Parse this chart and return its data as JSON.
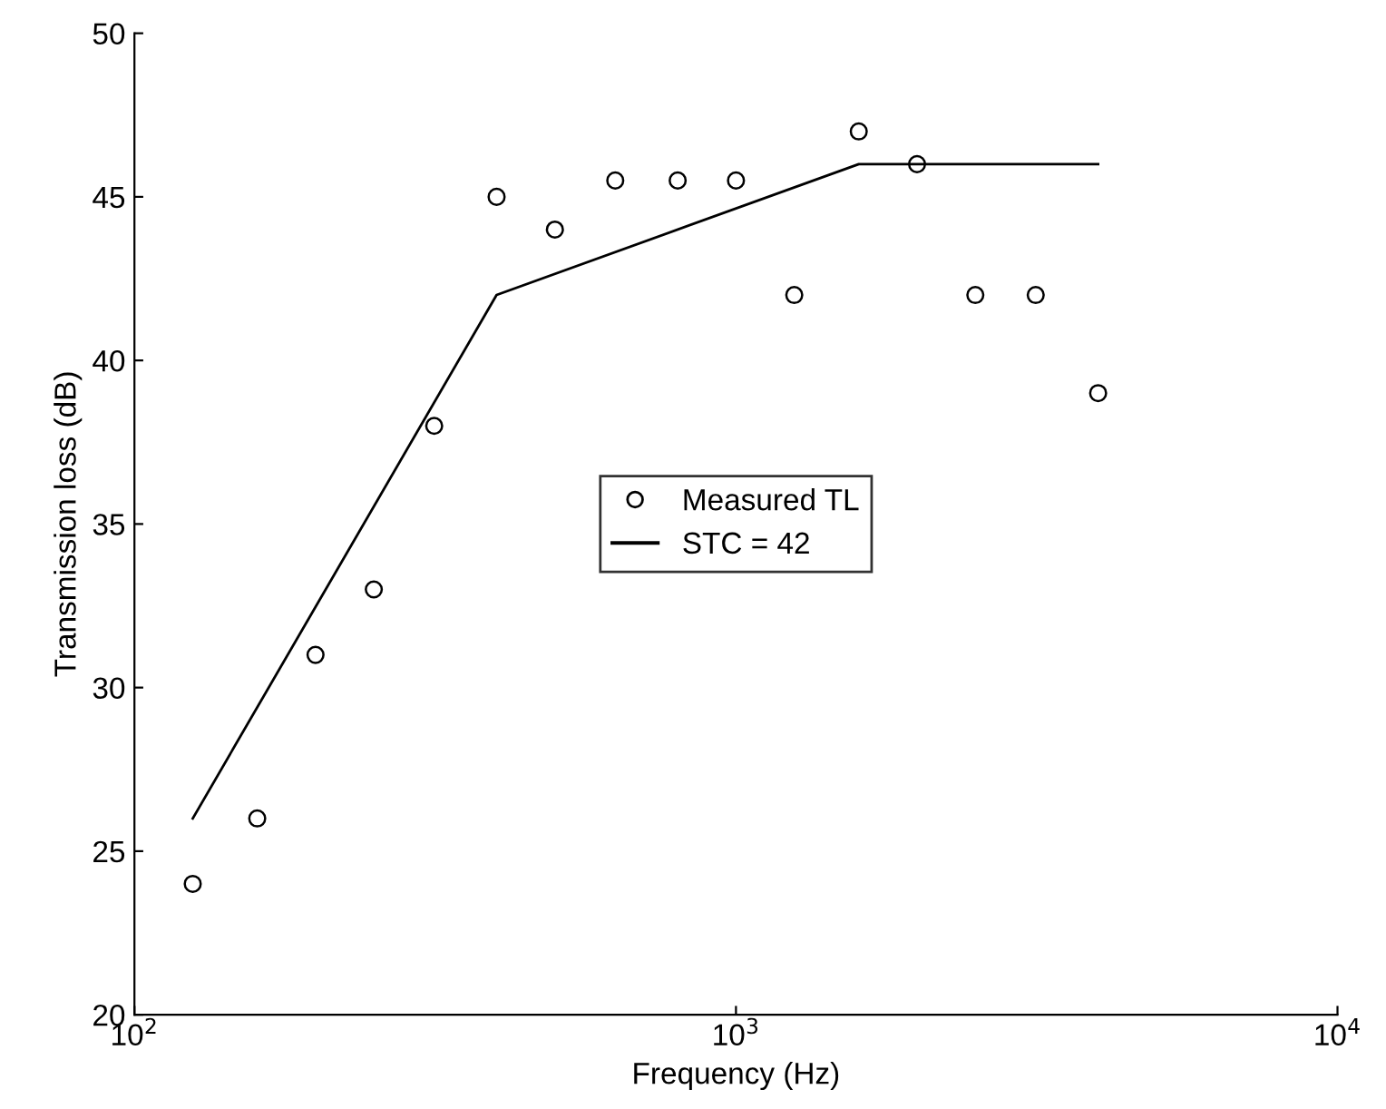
{
  "chart_data": {
    "type": "scatter",
    "xlabel": "Frequency (Hz)",
    "ylabel": "Transmission loss (dB)",
    "log": "x",
    "xlim": [
      100,
      10000
    ],
    "xticks": [
      {
        "value": 100,
        "label": "10$^{2}$"
      },
      {
        "value": 1000,
        "label": "10$^{3}$"
      },
      {
        "value": 10000,
        "label": "10$^{4}$"
      }
    ],
    "ylim": [
      20,
      50
    ],
    "yticks": [
      20,
      25,
      30,
      35,
      40,
      45,
      50
    ],
    "grid": false,
    "legend": "center",
    "series": [
      {
        "name": "Measured TL",
        "marker": "circle",
        "color": "#000000",
        "x": [
          125,
          160,
          200,
          250,
          315,
          400,
          500,
          630,
          800,
          1000,
          1250,
          1600,
          2000,
          2500,
          3150,
          4000
        ],
        "values": [
          24,
          26,
          31,
          33,
          38,
          45,
          44,
          45.5,
          45.5,
          45.5,
          42,
          47,
          46,
          42,
          42,
          39
        ]
      },
      {
        "name": "STC = 42",
        "type": "line",
        "marker": "none",
        "line_style": "solid",
        "color": "#000000",
        "x": [
          125,
          400,
          1600,
          4000
        ],
        "values": [
          26,
          42,
          46,
          46
        ]
      }
    ]
  }
}
